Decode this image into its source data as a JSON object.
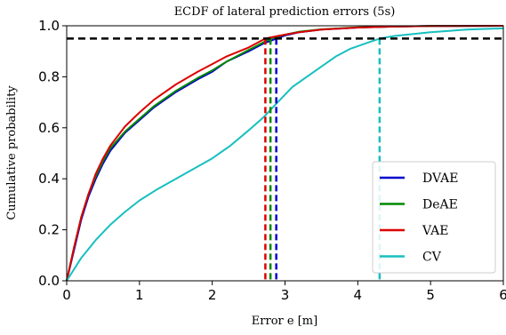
{
  "chart_data": {
    "type": "line",
    "title": "ECDF of lateral prediction errors (5s)",
    "xlabel": "Error e [m]",
    "ylabel": "Cumulative probability",
    "xlim": [
      0,
      6
    ],
    "ylim": [
      0,
      1
    ],
    "x_ticks": [
      "0",
      "1",
      "2",
      "3",
      "4",
      "5",
      "6"
    ],
    "y_ticks": [
      "0.0",
      "0.2",
      "0.4",
      "0.6",
      "0.8",
      "1.0"
    ],
    "grid": false,
    "legend_position": "lower-right",
    "reference_line": {
      "y": 0.95,
      "color": "#000000",
      "style": "dashed"
    },
    "series": [
      {
        "name": "DVAE",
        "color": "#0000cc",
        "threshold_x": 2.88,
        "x": [
          0,
          0.1,
          0.2,
          0.3,
          0.4,
          0.5,
          0.6,
          0.8,
          1.0,
          1.2,
          1.5,
          1.8,
          2.0,
          2.2,
          2.5,
          2.7,
          2.88,
          3.0,
          3.2,
          3.5,
          4.0,
          4.5,
          5.0,
          6.0
        ],
        "y": [
          0,
          0.12,
          0.24,
          0.33,
          0.4,
          0.46,
          0.51,
          0.58,
          0.63,
          0.68,
          0.74,
          0.79,
          0.82,
          0.86,
          0.9,
          0.93,
          0.95,
          0.962,
          0.975,
          0.985,
          0.993,
          0.997,
          0.999,
          1.0
        ]
      },
      {
        "name": "DeAE",
        "color": "#008800",
        "threshold_x": 2.8,
        "x": [
          0,
          0.1,
          0.2,
          0.3,
          0.4,
          0.5,
          0.6,
          0.8,
          1.0,
          1.2,
          1.5,
          1.8,
          2.0,
          2.2,
          2.5,
          2.7,
          2.8,
          3.0,
          3.2,
          3.5,
          4.0,
          4.5,
          5.0,
          6.0
        ],
        "y": [
          0,
          0.13,
          0.25,
          0.34,
          0.41,
          0.47,
          0.52,
          0.585,
          0.635,
          0.685,
          0.745,
          0.795,
          0.825,
          0.86,
          0.905,
          0.935,
          0.95,
          0.965,
          0.977,
          0.986,
          0.994,
          0.997,
          0.999,
          1.0
        ]
      },
      {
        "name": "VAE",
        "color": "#dd0000",
        "threshold_x": 2.73,
        "x": [
          0,
          0.1,
          0.2,
          0.3,
          0.4,
          0.5,
          0.6,
          0.8,
          1.0,
          1.2,
          1.5,
          1.8,
          2.0,
          2.2,
          2.5,
          2.73,
          2.9,
          3.0,
          3.2,
          3.5,
          4.0,
          4.5,
          5.0,
          6.0
        ],
        "y": [
          0,
          0.13,
          0.25,
          0.34,
          0.42,
          0.48,
          0.53,
          0.605,
          0.66,
          0.71,
          0.77,
          0.82,
          0.85,
          0.88,
          0.915,
          0.95,
          0.96,
          0.965,
          0.975,
          0.985,
          0.993,
          0.997,
          0.999,
          1.0
        ]
      },
      {
        "name": "CV",
        "color": "#17bfbf",
        "threshold_x": 4.3,
        "x": [
          0,
          0.2,
          0.4,
          0.6,
          0.8,
          1.0,
          1.25,
          1.5,
          1.75,
          2.0,
          2.25,
          2.5,
          2.7,
          2.9,
          3.1,
          3.3,
          3.5,
          3.7,
          3.9,
          4.1,
          4.3,
          4.5,
          5.0,
          5.5,
          6.0
        ],
        "y": [
          0,
          0.09,
          0.16,
          0.22,
          0.27,
          0.315,
          0.36,
          0.4,
          0.44,
          0.48,
          0.53,
          0.59,
          0.64,
          0.7,
          0.76,
          0.8,
          0.84,
          0.88,
          0.91,
          0.93,
          0.95,
          0.96,
          0.975,
          0.985,
          0.99
        ]
      }
    ]
  }
}
